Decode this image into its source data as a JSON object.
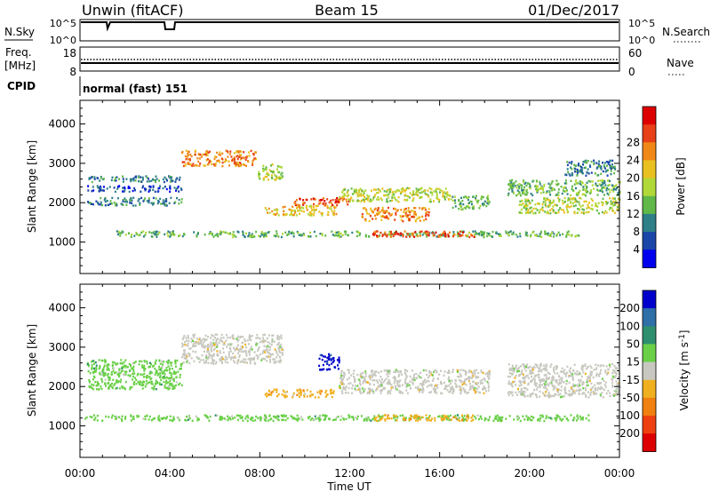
{
  "header": {
    "radar": "Unwin (fitACF)",
    "beam": "Beam 15",
    "date": "01/Dec/2017"
  },
  "status_panels": {
    "nsky_label": "N.Sky",
    "nsearch_label": "N.Search",
    "noise_ticks_left": [
      "10^5",
      "10^0"
    ],
    "noise_ticks_right": [
      "10^5",
      "10^0"
    ],
    "freq_label": "Freq.",
    "freq_unit": "[MHz]",
    "freq_ticks": [
      "18",
      "8"
    ],
    "nave_label": "Nave",
    "nave_ticks": [
      "60",
      "0"
    ],
    "cpid_label": "CPID",
    "cpid_text": "normal (fast) 151"
  },
  "x_axis": {
    "label": "Time UT",
    "tick_labels": [
      "00:00",
      "04:00",
      "08:00",
      "12:00",
      "16:00",
      "20:00",
      "00:00"
    ]
  },
  "chart_data": [
    {
      "type": "heatmap",
      "id": "power",
      "ylabel": "Slant Range [km]",
      "y_ticks": [
        "1000",
        "2000",
        "3000",
        "4000"
      ],
      "ylim": [
        200,
        4600
      ],
      "xlim_hours": [
        0,
        24
      ],
      "colorbar_label": "Power [dB]",
      "colorbar_ticks": [
        "4",
        "8",
        "12",
        "16",
        "20",
        "24",
        "28"
      ],
      "colorbar_colors": [
        "#0000ee",
        "#1a45a8",
        "#2e7f88",
        "#60b848",
        "#b0d838",
        "#e8c020",
        "#f08818",
        "#e84018",
        "#dd0000"
      ],
      "regions": [
        {
          "t": [
            1.6,
            22.2
          ],
          "r": [
            1150,
            1300
          ],
          "level": 3
        },
        {
          "t": [
            0.3,
            4.5
          ],
          "r": [
            1950,
            2150
          ],
          "level": 2
        },
        {
          "t": [
            0.3,
            4.5
          ],
          "r": [
            2300,
            2450
          ],
          "level": 1
        },
        {
          "t": [
            0.3,
            4.5
          ],
          "r": [
            2550,
            2700
          ],
          "level": 2
        },
        {
          "t": [
            4.5,
            7.8
          ],
          "r": [
            2950,
            3350
          ],
          "level": 6
        },
        {
          "t": [
            7.8,
            9.0
          ],
          "r": [
            2600,
            3000
          ],
          "level": 4
        },
        {
          "t": [
            8.2,
            11.4
          ],
          "r": [
            1700,
            1950
          ],
          "level": 5
        },
        {
          "t": [
            9.5,
            12.0
          ],
          "r": [
            1950,
            2150
          ],
          "level": 7
        },
        {
          "t": [
            11.5,
            16.5
          ],
          "r": [
            2050,
            2400
          ],
          "level": 4
        },
        {
          "t": [
            12.5,
            15.5
          ],
          "r": [
            1550,
            1900
          ],
          "level": 6
        },
        {
          "t": [
            13.0,
            17.5
          ],
          "r": [
            1150,
            1300
          ],
          "level": 7
        },
        {
          "t": [
            16.5,
            18.2
          ],
          "r": [
            1850,
            2200
          ],
          "level": 3
        },
        {
          "t": [
            19.0,
            24.0
          ],
          "r": [
            2200,
            2600
          ],
          "level": 3
        },
        {
          "t": [
            19.5,
            24.0
          ],
          "r": [
            1750,
            2150
          ],
          "level": 4
        },
        {
          "t": [
            21.5,
            23.8
          ],
          "r": [
            2700,
            3100
          ],
          "level": 2
        }
      ]
    },
    {
      "type": "heatmap",
      "id": "velocity",
      "ylabel": "Slant Range [km]",
      "y_ticks": [
        "1000",
        "2000",
        "3000",
        "4000"
      ],
      "ylim": [
        200,
        4600
      ],
      "xlim_hours": [
        0,
        24
      ],
      "colorbar_label": "Velocity [m s^-1]",
      "colorbar_ticks": [
        "200",
        "100",
        "50",
        "15",
        "-15",
        "-50",
        "-100",
        "-200"
      ],
      "colorbar_colors": [
        "#0000cc",
        "#2e6fa8",
        "#2e8f6f",
        "#6ad048",
        "#c8c8c0",
        "#f0b020",
        "#f08010",
        "#ee4010",
        "#dd0000"
      ],
      "regions": [
        {
          "t": [
            0.2,
            22.6
          ],
          "r": [
            1150,
            1300
          ],
          "category": "15"
        },
        {
          "t": [
            13.0,
            17.5
          ],
          "r": [
            1150,
            1300
          ],
          "category": "-50"
        },
        {
          "t": [
            0.3,
            4.5
          ],
          "r": [
            1950,
            2700
          ],
          "category": "15"
        },
        {
          "t": [
            4.5,
            9.0
          ],
          "r": [
            2600,
            3350
          ],
          "category": "-15"
        },
        {
          "t": [
            8.2,
            11.3
          ],
          "r": [
            1750,
            1950
          ],
          "category": "-50"
        },
        {
          "t": [
            10.6,
            11.5
          ],
          "r": [
            2450,
            2850
          ],
          "category": "200"
        },
        {
          "t": [
            11.5,
            18.2
          ],
          "r": [
            1850,
            2450
          ],
          "category": "-15"
        },
        {
          "t": [
            19.0,
            24.0
          ],
          "r": [
            1750,
            2600
          ],
          "category": "-15"
        }
      ]
    }
  ]
}
